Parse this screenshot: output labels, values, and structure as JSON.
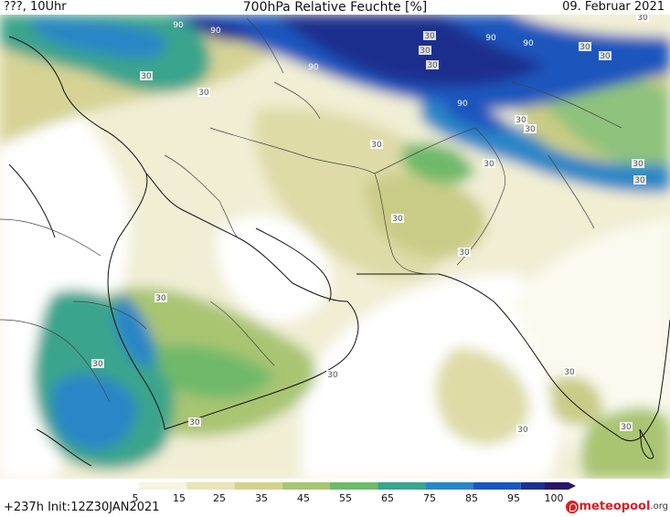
{
  "header": {
    "left": "???, 10Uhr",
    "title": "700hPa Relative Feuchte [%]",
    "date": "09. Februar 2021"
  },
  "footer": {
    "run_info": "+237h  Init:12Z30JAN2021",
    "logo_main": "meteopool",
    "logo_tld": ".org"
  },
  "legend": {
    "ticks": [
      "5",
      "15",
      "25",
      "35",
      "45",
      "55",
      "65",
      "75",
      "85",
      "95",
      "100"
    ],
    "colors": [
      "#ffffff",
      "#f7f4df",
      "#e9e5b8",
      "#d3d38e",
      "#a9c572",
      "#6fb96a",
      "#3aa48c",
      "#2a86c6",
      "#1f56bd",
      "#1f2f8d",
      "#2a1666"
    ]
  },
  "map": {
    "contour_labels": [
      {
        "text": "30"
      },
      {
        "text": "30"
      },
      {
        "text": "30"
      },
      {
        "text": "30"
      },
      {
        "text": "30"
      },
      {
        "text": "30"
      },
      {
        "text": "30"
      },
      {
        "text": "30"
      },
      {
        "text": "30"
      },
      {
        "text": "30"
      },
      {
        "text": "30"
      },
      {
        "text": "30"
      },
      {
        "text": "30"
      },
      {
        "text": "30"
      },
      {
        "text": "30"
      },
      {
        "text": "30"
      },
      {
        "text": "30"
      },
      {
        "text": "30"
      },
      {
        "text": "30"
      },
      {
        "text": "30"
      },
      {
        "text": "30"
      },
      {
        "text": "30"
      },
      {
        "text": "30"
      },
      {
        "text": "90"
      },
      {
        "text": "90"
      },
      {
        "text": "90"
      },
      {
        "text": "90"
      },
      {
        "text": "90"
      },
      {
        "text": "90"
      }
    ]
  }
}
